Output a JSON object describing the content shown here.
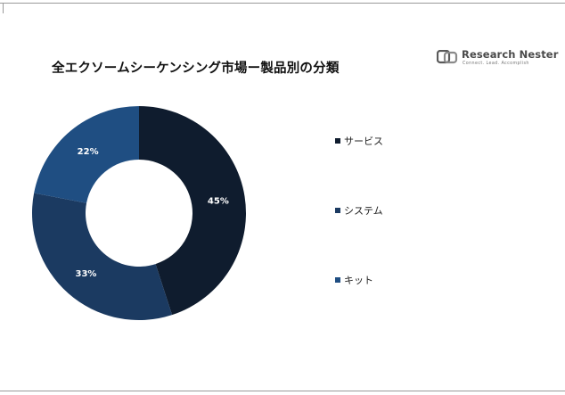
{
  "header": {
    "title": "全エクソームシーケンシング市場ー製品別の分類"
  },
  "logo": {
    "name": "Research Nester",
    "tagline": "Connect. Lead. Accomplish",
    "icon": "research-nester-logo-icon"
  },
  "chart_data": {
    "type": "pie",
    "donut": true,
    "title": "全エクソームシーケンシング市場ー製品別の分類",
    "legend_position": "right",
    "categories": [
      "サービス",
      "システム",
      "キット"
    ],
    "values": [
      45,
      33,
      22
    ],
    "data_labels": [
      "45%",
      "33%",
      "22%"
    ],
    "colors": [
      "#0f1c2e",
      "#1b3a61",
      "#1f4e82"
    ]
  }
}
